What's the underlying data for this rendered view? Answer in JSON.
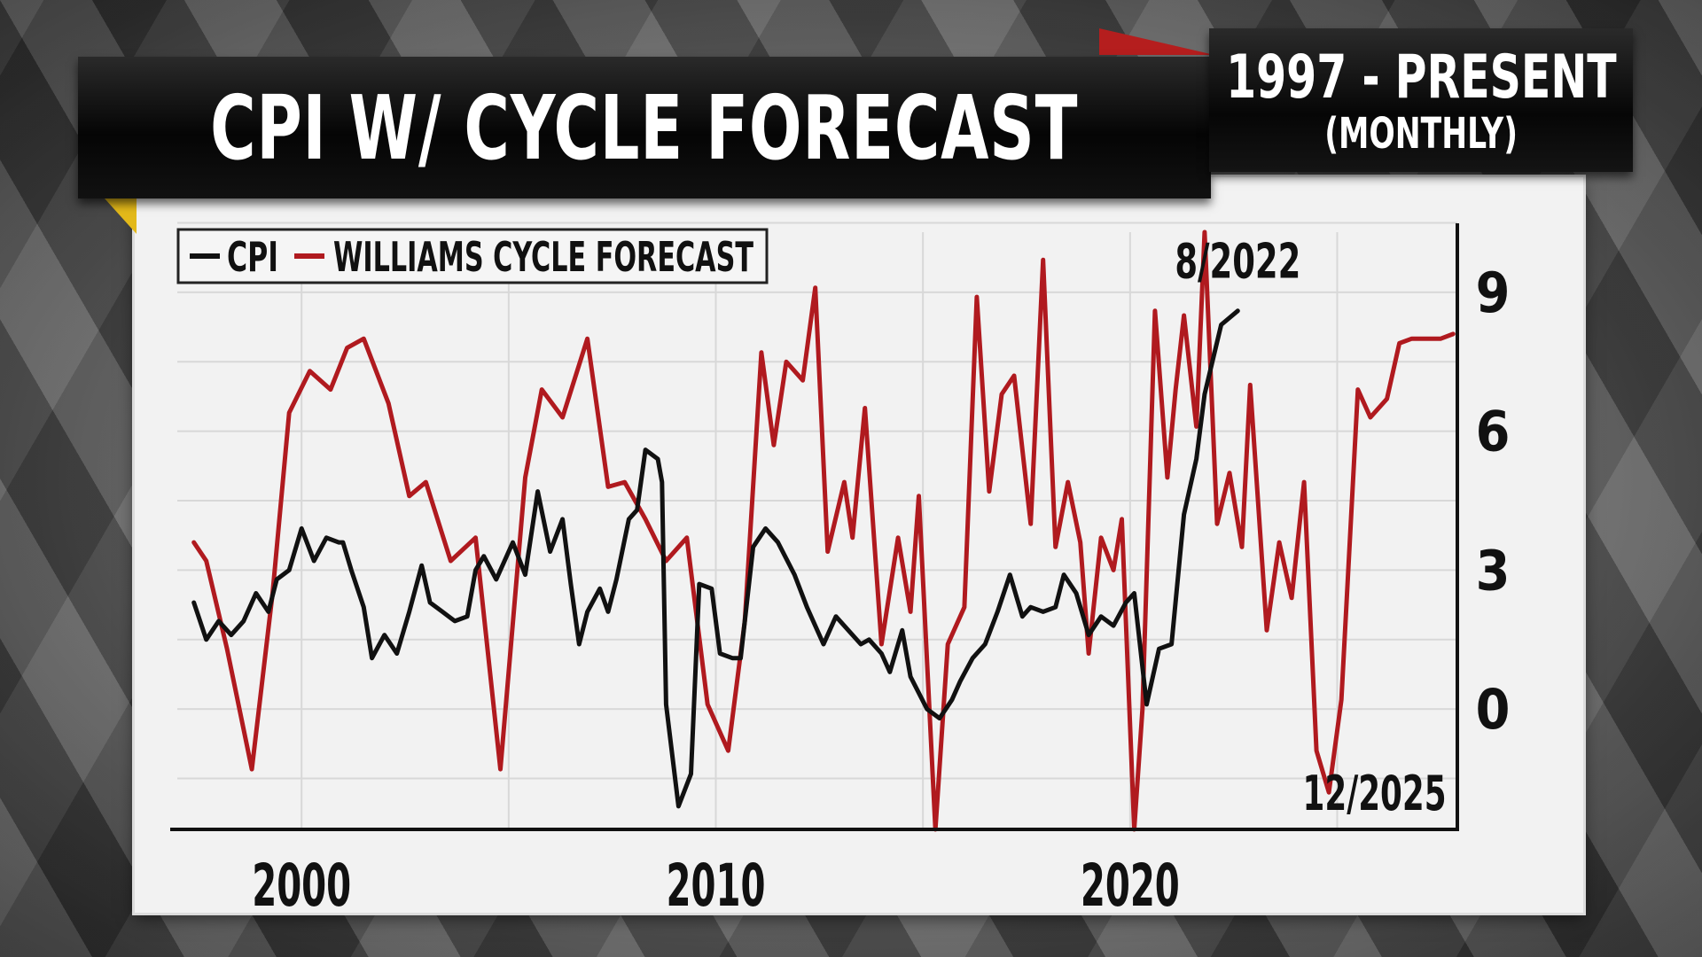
{
  "header": {
    "title": "CPI W/ CYCLE FORECAST",
    "date_range": "1997 - PRESENT",
    "frequency": "(MONTHLY)"
  },
  "colors": {
    "cpi": "#111111",
    "forecast": "#b01a1f",
    "panel": "#f2f2f2",
    "grid": "#d8d8d8"
  },
  "chart_data": {
    "type": "line",
    "title": "CPI W/ CYCLE FORECAST",
    "legend": [
      "CPI",
      "WILLIAMS CYCLE FORECAST"
    ],
    "legend_position": "top-left",
    "x_ticks": [
      "2000",
      "2010",
      "2020"
    ],
    "y_ticks": [
      "9",
      "6",
      "3",
      "0"
    ],
    "y_axis_side": "right",
    "xlim": [
      1997.0,
      2027.9
    ],
    "ylim": [
      -2.6,
      10.3
    ],
    "grid": true,
    "annotations": [
      {
        "text": "8/2022",
        "x": 2022.6,
        "y": 9.7
      },
      {
        "text": "12/2025",
        "x": 2025.9,
        "y": -1.8
      }
    ],
    "series": [
      {
        "name": "CPI",
        "x": [
          1997.4,
          1997.7,
          1998.0,
          1998.3,
          1998.6,
          1998.9,
          1999.2,
          1999.4,
          1999.7,
          2000.0,
          2000.3,
          2000.6,
          2000.9,
          2001.0,
          2001.2,
          2001.5,
          2001.7,
          2002.0,
          2002.3,
          2002.6,
          2002.9,
          2003.1,
          2003.4,
          2003.7,
          2004.0,
          2004.2,
          2004.4,
          2004.7,
          2005.1,
          2005.4,
          2005.7,
          2006.0,
          2006.3,
          2006.5,
          2006.7,
          2006.9,
          2007.2,
          2007.4,
          2007.6,
          2007.9,
          2008.1,
          2008.3,
          2008.6,
          2008.7,
          2008.8,
          2009.1,
          2009.4,
          2009.6,
          2009.9,
          2010.1,
          2010.4,
          2010.6,
          2010.9,
          2011.2,
          2011.5,
          2011.9,
          2012.2,
          2012.6,
          2012.9,
          2013.2,
          2013.5,
          2013.7,
          2014.0,
          2014.2,
          2014.5,
          2014.7,
          2015.1,
          2015.4,
          2015.7,
          2015.9,
          2016.2,
          2016.5,
          2016.8,
          2017.1,
          2017.4,
          2017.6,
          2017.9,
          2018.2,
          2018.4,
          2018.7,
          2019.0,
          2019.3,
          2019.6,
          2019.9,
          2020.1,
          2020.4,
          2020.7,
          2021.0,
          2021.3,
          2021.6,
          2021.8,
          2022.2,
          2022.6
        ],
        "values": [
          2.3,
          1.5,
          1.9,
          1.6,
          1.9,
          2.5,
          2.1,
          2.8,
          3.0,
          3.9,
          3.2,
          3.7,
          3.6,
          3.6,
          3.0,
          2.2,
          1.1,
          1.6,
          1.2,
          2.1,
          3.1,
          2.3,
          2.1,
          1.9,
          2.0,
          3.0,
          3.3,
          2.8,
          3.6,
          2.9,
          4.7,
          3.4,
          4.1,
          2.7,
          1.4,
          2.1,
          2.6,
          2.1,
          2.8,
          4.1,
          4.3,
          5.6,
          5.4,
          4.9,
          0.1,
          -2.1,
          -1.4,
          2.7,
          2.6,
          1.2,
          1.1,
          1.1,
          3.5,
          3.9,
          3.6,
          2.9,
          2.2,
          1.4,
          2.0,
          1.7,
          1.4,
          1.5,
          1.2,
          0.8,
          1.7,
          0.7,
          0.0,
          -0.2,
          0.2,
          0.6,
          1.1,
          1.4,
          2.1,
          2.9,
          2.0,
          2.2,
          2.1,
          2.2,
          2.9,
          2.5,
          1.6,
          2.0,
          1.8,
          2.3,
          2.5,
          0.1,
          1.3,
          1.4,
          4.2,
          5.4,
          6.8,
          8.3,
          8.6
        ]
      },
      {
        "name": "WILLIAMS CYCLE FORECAST",
        "x": [
          1997.4,
          1997.7,
          1998.2,
          1998.8,
          1999.3,
          1999.7,
          2000.2,
          2000.7,
          2001.1,
          2001.5,
          2002.1,
          2002.6,
          2003.0,
          2003.6,
          2004.2,
          2004.8,
          2005.4,
          2005.8,
          2006.3,
          2006.9,
          2007.4,
          2007.8,
          2008.3,
          2008.8,
          2009.3,
          2009.8,
          2010.3,
          2010.7,
          2011.1,
          2011.4,
          2011.7,
          2012.1,
          2012.4,
          2012.7,
          2013.1,
          2013.3,
          2013.6,
          2014.0,
          2014.4,
          2014.7,
          2014.9,
          2015.3,
          2015.6,
          2016.0,
          2016.3,
          2016.6,
          2016.9,
          2017.2,
          2017.6,
          2017.9,
          2018.2,
          2018.5,
          2018.8,
          2019.0,
          2019.3,
          2019.6,
          2019.8,
          2020.1,
          2020.3,
          2020.6,
          2020.9,
          2021.1,
          2021.3,
          2021.6,
          2021.8,
          2022.1,
          2022.4,
          2022.7,
          2022.9,
          2023.3,
          2023.6,
          2023.9,
          2024.2,
          2024.5,
          2024.8,
          2025.1,
          2025.5,
          2025.8,
          2026.2,
          2026.5,
          2026.8,
          2027.2,
          2027.5,
          2027.8
        ],
        "values": [
          3.6,
          3.2,
          1.3,
          -1.3,
          2.5,
          6.4,
          7.3,
          6.9,
          7.8,
          8.0,
          6.6,
          4.6,
          4.9,
          3.2,
          3.7,
          -1.3,
          5.0,
          6.9,
          6.3,
          8.0,
          4.8,
          4.9,
          4.1,
          3.2,
          3.7,
          0.1,
          -0.9,
          1.9,
          7.7,
          5.7,
          7.5,
          7.1,
          9.1,
          3.4,
          4.9,
          3.7,
          6.5,
          1.4,
          3.7,
          2.1,
          4.6,
          -2.6,
          1.4,
          2.2,
          8.9,
          4.7,
          6.8,
          7.2,
          4.0,
          9.7,
          3.5,
          4.9,
          3.6,
          1.2,
          3.7,
          3.0,
          4.1,
          -2.6,
          0.0,
          8.6,
          5.0,
          6.9,
          8.5,
          6.1,
          10.3,
          4.0,
          5.1,
          3.5,
          7.0,
          1.7,
          3.6,
          2.4,
          4.9,
          -0.9,
          -1.8,
          0.2,
          6.9,
          6.3,
          6.7,
          7.9,
          8.0,
          8.0,
          8.0,
          8.1
        ]
      }
    ]
  }
}
